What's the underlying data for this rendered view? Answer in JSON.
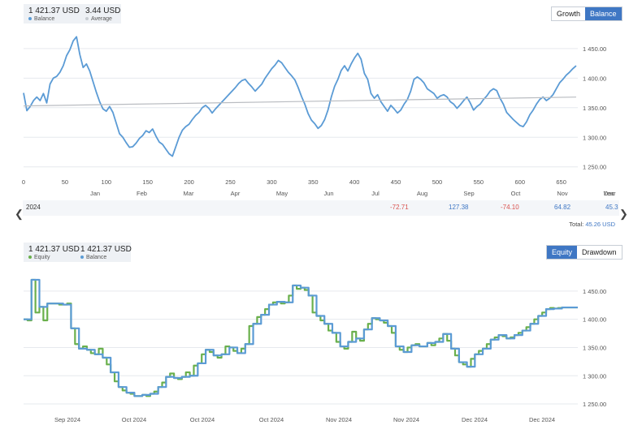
{
  "top": {
    "legend": [
      {
        "value": "1 421.37 USD",
        "name": "Balance",
        "color": "#5b9bd5"
      },
      {
        "value": "3.44 USD",
        "name": "Average",
        "color": "#c8ccd2"
      }
    ],
    "buttons": [
      "Growth",
      "Balance"
    ],
    "active_button": "Balance",
    "year_label": "Year",
    "row_label": "2024",
    "row_values": [
      "-72.71",
      "127.38",
      "-74.10",
      "64.82",
      "45.3"
    ],
    "total_label": "Total:",
    "total_value": "45.26 USD"
  },
  "bottom": {
    "legend": [
      {
        "value": "1 421.37 USD",
        "name": "Equity",
        "color": "#6ab04c"
      },
      {
        "value": "1 421.37 USD",
        "name": "Balance",
        "color": "#5b9bd5"
      }
    ],
    "buttons": [
      "Equity",
      "Drawdown"
    ],
    "active_button": "Equity"
  },
  "chart_data": [
    {
      "type": "line",
      "title": "",
      "xlabel": "",
      "ylabel": "",
      "x_ticks": [
        "0",
        "50",
        "100",
        "150",
        "200",
        "250",
        "300",
        "350",
        "400",
        "450",
        "500",
        "550",
        "600",
        "650"
      ],
      "month_labels": [
        "Jan",
        "Feb",
        "Mar",
        "Apr",
        "May",
        "Jun",
        "Jul",
        "Aug",
        "Sep",
        "Oct",
        "Nov",
        "Dec"
      ],
      "y_ticks": [
        "1 250.00",
        "1 300.00",
        "1 350.00",
        "1 400.00",
        "1 450.00"
      ],
      "xlim": [
        0,
        670
      ],
      "ylim": [
        1240,
        1480
      ],
      "grid": true,
      "series": [
        {
          "name": "Balance",
          "color": "#5b9bd5",
          "x": [
            0,
            4,
            8,
            12,
            16,
            20,
            24,
            28,
            32,
            36,
            40,
            44,
            48,
            52,
            56,
            60,
            64,
            68,
            72,
            76,
            80,
            84,
            88,
            92,
            96,
            100,
            104,
            108,
            112,
            116,
            120,
            124,
            128,
            132,
            136,
            140,
            144,
            148,
            152,
            156,
            160,
            164,
            168,
            172,
            176,
            180,
            184,
            188,
            192,
            196,
            200,
            204,
            208,
            212,
            216,
            220,
            224,
            228,
            232,
            236,
            240,
            244,
            248,
            252,
            256,
            260,
            264,
            268,
            272,
            276,
            280,
            284,
            288,
            292,
            296,
            300,
            304,
            308,
            312,
            316,
            320,
            324,
            328,
            332,
            336,
            340,
            344,
            348,
            352,
            356,
            360,
            364,
            368,
            372,
            376,
            380,
            384,
            388,
            392,
            396,
            400,
            404,
            408,
            412,
            416,
            420,
            424,
            428,
            432,
            436,
            440,
            444,
            448,
            452,
            456,
            460,
            464,
            468,
            472,
            476,
            480,
            484,
            488,
            492,
            496,
            500,
            504,
            508,
            512,
            516,
            520,
            524,
            528,
            532,
            536,
            540,
            544,
            548,
            552,
            556,
            560,
            564,
            568,
            572,
            576,
            580,
            584,
            588,
            592,
            596,
            600,
            604,
            608,
            612,
            616,
            620,
            624,
            628,
            632,
            636,
            640,
            644,
            648,
            652,
            656,
            660,
            664,
            668
          ],
          "y": [
            1375,
            1345,
            1352,
            1362,
            1368,
            1362,
            1374,
            1358,
            1390,
            1400,
            1403,
            1410,
            1421,
            1438,
            1448,
            1463,
            1470,
            1440,
            1418,
            1424,
            1412,
            1394,
            1376,
            1360,
            1348,
            1344,
            1352,
            1342,
            1324,
            1306,
            1300,
            1291,
            1283,
            1284,
            1290,
            1298,
            1303,
            1311,
            1308,
            1314,
            1302,
            1292,
            1288,
            1280,
            1272,
            1268,
            1284,
            1300,
            1312,
            1318,
            1322,
            1330,
            1337,
            1342,
            1350,
            1354,
            1349,
            1341,
            1348,
            1354,
            1360,
            1366,
            1372,
            1378,
            1384,
            1391,
            1396,
            1398,
            1391,
            1385,
            1378,
            1384,
            1390,
            1400,
            1408,
            1416,
            1422,
            1430,
            1426,
            1418,
            1410,
            1404,
            1397,
            1384,
            1369,
            1356,
            1340,
            1329,
            1323,
            1315,
            1320,
            1330,
            1346,
            1368,
            1386,
            1398,
            1413,
            1421,
            1412,
            1424,
            1434,
            1442,
            1432,
            1408,
            1398,
            1374,
            1366,
            1372,
            1360,
            1352,
            1344,
            1354,
            1348,
            1341,
            1346,
            1356,
            1364,
            1378,
            1398,
            1402,
            1398,
            1392,
            1382,
            1378,
            1374,
            1366,
            1370,
            1372,
            1368,
            1360,
            1356,
            1349,
            1355,
            1362,
            1368,
            1358,
            1346,
            1352,
            1356,
            1364,
            1370,
            1378,
            1382,
            1379,
            1366,
            1356,
            1342,
            1336,
            1330,
            1325,
            1320,
            1318,
            1326,
            1338,
            1346,
            1356,
            1364,
            1368,
            1362,
            1366,
            1372,
            1382,
            1392,
            1398,
            1405,
            1410,
            1416,
            1421
          ]
        },
        {
          "name": "Average",
          "color": "#b9bcc1",
          "x": [
            0,
            668
          ],
          "y": [
            1353,
            1368
          ]
        }
      ]
    },
    {
      "type": "line",
      "title": "",
      "xlabel": "",
      "ylabel": "",
      "x_ticks": [
        "Sep 2024",
        "Oct 2024",
        "Oct 2024",
        "Oct 2024",
        "Nov 2024",
        "Nov 2024",
        "Dec 2024",
        "Dec 2024"
      ],
      "y_ticks": [
        "1 250.00",
        "1 300.00",
        "1 350.00",
        "1 400.00",
        "1 450.00"
      ],
      "xlim": [
        0,
        140
      ],
      "ylim": [
        1240,
        1480
      ],
      "grid": true,
      "series": [
        {
          "name": "Equity",
          "color": "#6ab04c",
          "x": [
            0,
            1,
            2,
            3,
            4,
            5,
            6,
            7,
            8,
            9,
            10,
            11,
            12,
            13,
            14,
            15,
            16,
            17,
            18,
            19,
            20,
            21,
            22,
            23,
            24,
            25,
            26,
            27,
            28,
            29,
            30,
            31,
            32,
            33,
            34,
            35,
            36,
            37,
            38,
            39,
            40,
            41,
            42,
            43,
            44,
            45,
            46,
            47,
            48,
            49,
            50,
            51,
            52,
            53,
            54,
            55,
            56,
            57,
            58,
            59,
            60,
            61,
            62,
            63,
            64,
            65,
            66,
            67,
            68,
            69,
            70,
            71,
            72,
            73,
            74,
            75,
            76,
            77,
            78,
            79,
            80,
            81,
            82,
            83,
            84,
            85,
            86,
            87,
            88,
            89,
            90,
            91,
            92,
            93,
            94,
            95,
            96,
            97,
            98,
            99,
            100,
            101,
            102,
            103,
            104,
            105,
            106,
            107,
            108,
            109,
            110,
            111,
            112,
            113,
            114,
            115,
            116,
            117,
            118,
            119,
            120,
            121,
            122,
            123,
            124,
            125,
            126,
            127,
            128,
            129,
            130,
            131,
            132,
            133,
            134,
            135,
            136,
            137,
            138,
            139,
            140
          ],
          "y": [
            1400,
            1398,
            1470,
            1412,
            1422,
            1398,
            1428,
            1428,
            1428,
            1426,
            1426,
            1428,
            1384,
            1356,
            1348,
            1352,
            1346,
            1340,
            1338,
            1348,
            1332,
            1320,
            1306,
            1290,
            1280,
            1274,
            1270,
            1268,
            1264,
            1264,
            1266,
            1264,
            1268,
            1272,
            1280,
            1288,
            1298,
            1304,
            1296,
            1294,
            1298,
            1306,
            1300,
            1318,
            1322,
            1338,
            1346,
            1342,
            1336,
            1332,
            1338,
            1352,
            1350,
            1344,
            1340,
            1348,
            1356,
            1388,
            1392,
            1404,
            1408,
            1418,
            1426,
            1430,
            1431,
            1428,
            1430,
            1442,
            1460,
            1454,
            1456,
            1452,
            1442,
            1412,
            1406,
            1398,
            1392,
            1380,
            1376,
            1360,
            1352,
            1348,
            1360,
            1378,
            1366,
            1362,
            1382,
            1392,
            1402,
            1400,
            1398,
            1394,
            1388,
            1376,
            1352,
            1346,
            1342,
            1350,
            1354,
            1356,
            1352,
            1352,
            1358,
            1354,
            1360,
            1366,
            1374,
            1362,
            1348,
            1336,
            1324,
            1320,
            1316,
            1330,
            1338,
            1344,
            1348,
            1356,
            1364,
            1368,
            1372,
            1370,
            1366,
            1368,
            1372,
            1376,
            1380,
            1386,
            1392,
            1400,
            1406,
            1412,
            1418,
            1420,
            1419,
            1420,
            1421,
            1421,
            1421,
            1421,
            1421
          ]
        },
        {
          "name": "Balance",
          "color": "#5b9bd5",
          "x": [
            0,
            2,
            4,
            6,
            8,
            10,
            12,
            14,
            16,
            18,
            20,
            22,
            24,
            26,
            28,
            30,
            32,
            34,
            36,
            38,
            40,
            42,
            44,
            46,
            48,
            50,
            52,
            54,
            56,
            58,
            60,
            62,
            64,
            66,
            68,
            70,
            72,
            74,
            76,
            78,
            80,
            82,
            84,
            86,
            88,
            90,
            92,
            94,
            96,
            98,
            100,
            102,
            104,
            106,
            108,
            110,
            112,
            114,
            116,
            118,
            120,
            122,
            124,
            126,
            128,
            130,
            132,
            134,
            136,
            138,
            140
          ],
          "y": [
            1400,
            1470,
            1422,
            1428,
            1428,
            1426,
            1384,
            1348,
            1346,
            1338,
            1332,
            1306,
            1280,
            1270,
            1264,
            1266,
            1268,
            1280,
            1298,
            1296,
            1298,
            1300,
            1322,
            1346,
            1336,
            1338,
            1350,
            1340,
            1356,
            1392,
            1408,
            1426,
            1431,
            1430,
            1460,
            1456,
            1442,
            1406,
            1392,
            1376,
            1352,
            1360,
            1366,
            1382,
            1402,
            1398,
            1388,
            1352,
            1342,
            1354,
            1352,
            1358,
            1360,
            1374,
            1348,
            1324,
            1316,
            1338,
            1348,
            1364,
            1372,
            1366,
            1372,
            1380,
            1392,
            1406,
            1418,
            1419,
            1421,
            1421,
            1421
          ]
        }
      ]
    }
  ]
}
